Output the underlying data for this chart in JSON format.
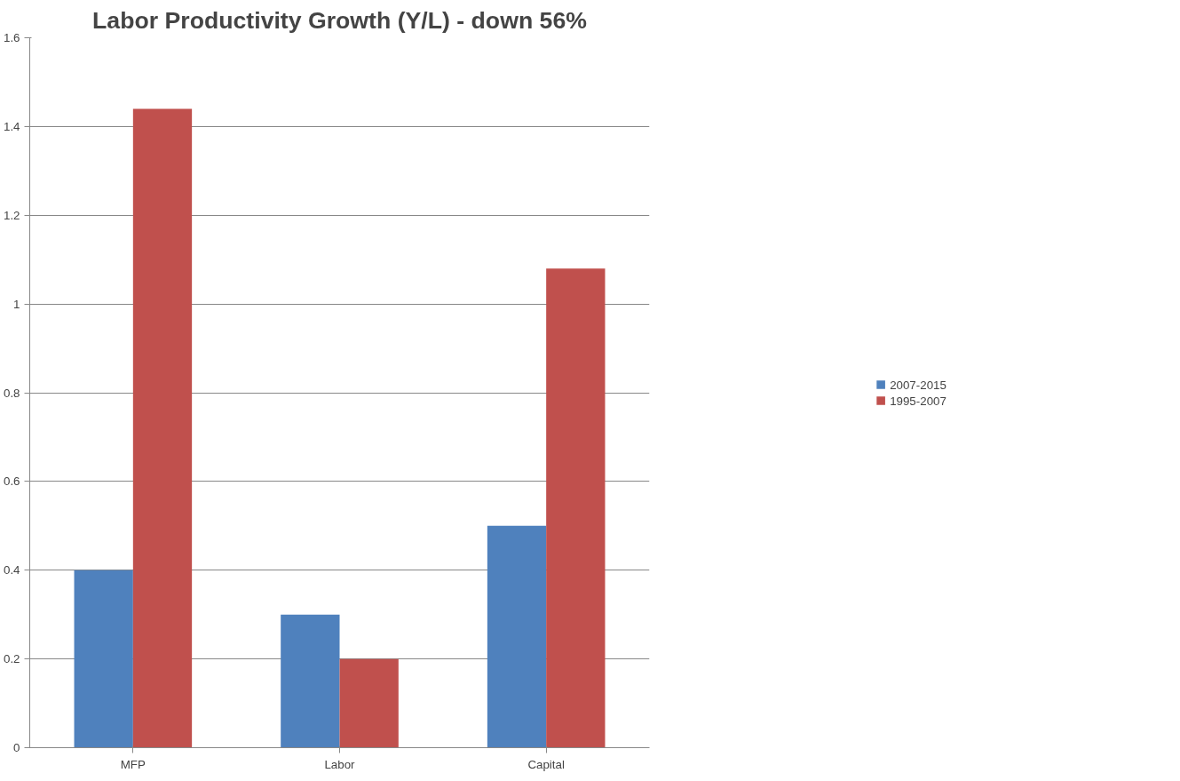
{
  "chart_data": {
    "type": "bar",
    "title": "Labor Productivity Growth (Y/L) - down 56%",
    "categories": [
      "MFP",
      "Labor",
      "Capital"
    ],
    "series": [
      {
        "name": "2007-2015",
        "color": "#4f81bd",
        "values": [
          0.4,
          0.3,
          0.5
        ]
      },
      {
        "name": "1995-2007",
        "color": "#c0504d",
        "values": [
          1.44,
          0.2,
          1.08
        ]
      }
    ],
    "ylim": [
      0,
      1.6
    ],
    "yticks": [
      0,
      0.2,
      0.4,
      0.6,
      0.8,
      1,
      1.2,
      1.4,
      1.6
    ],
    "grid": "y",
    "legend": "right"
  }
}
